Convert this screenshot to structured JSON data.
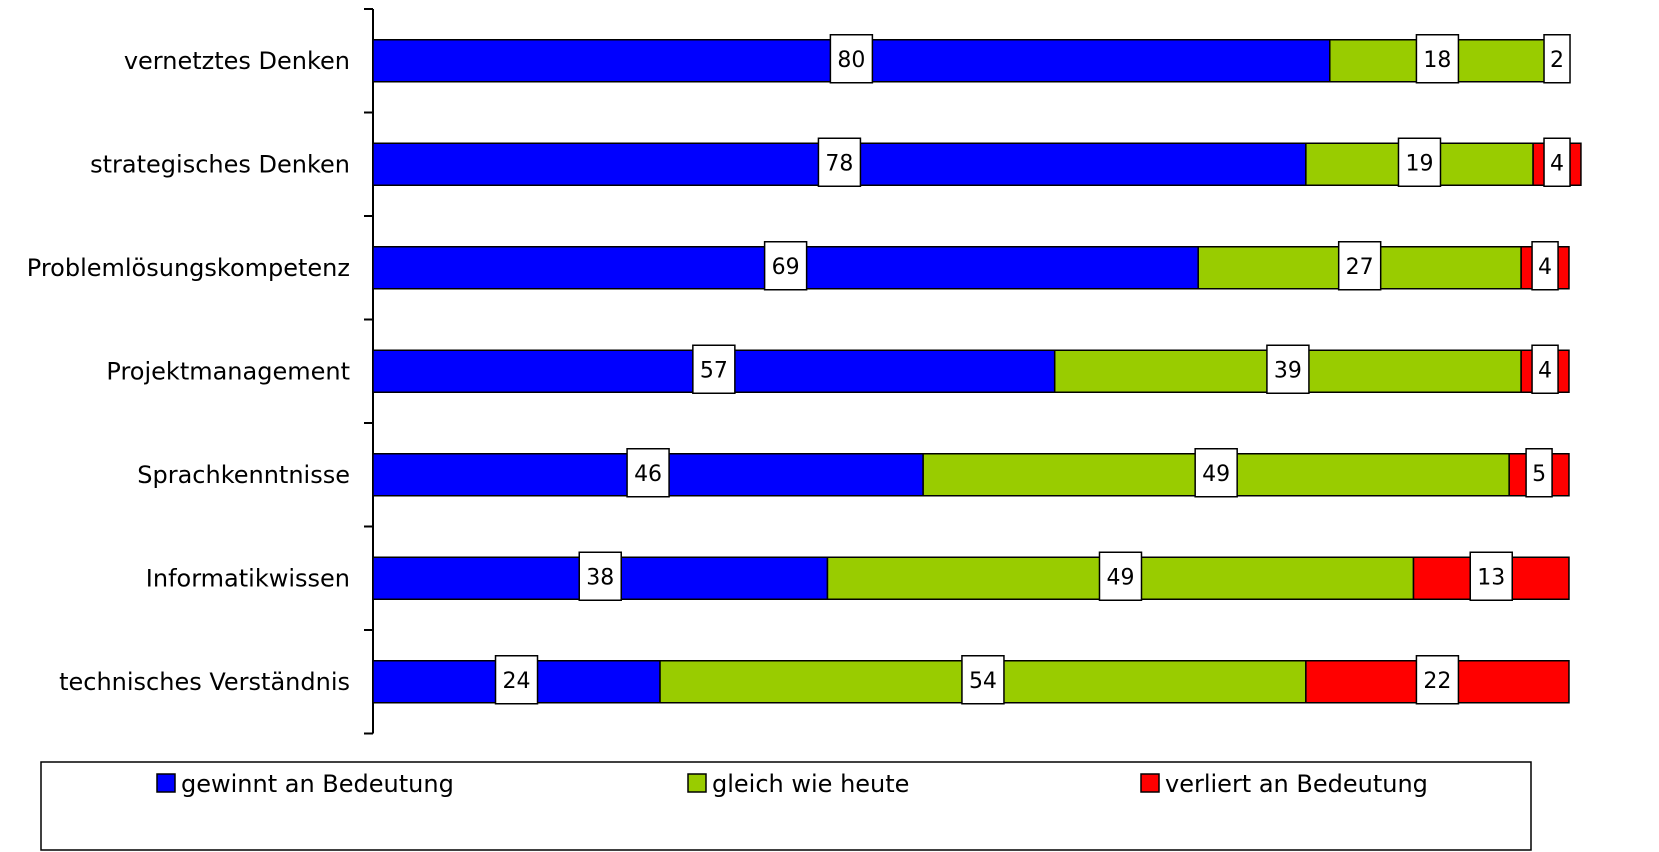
{
  "chart_data": {
    "type": "bar",
    "orientation": "horizontal",
    "stacked": true,
    "categories": [
      "vernetztes Denken",
      "strategisches Denken",
      "Problemlösungskompetenz",
      "Projektmanagement",
      "Sprachkenntnisse",
      "Informatikwissen",
      "technisches Verständnis"
    ],
    "series": [
      {
        "name": "gewinnt an Bedeutung",
        "color": "#0000FF",
        "values": [
          80,
          78,
          69,
          57,
          46,
          38,
          24
        ]
      },
      {
        "name": "gleich wie heute",
        "color": "#99CC00",
        "values": [
          18,
          19,
          27,
          39,
          49,
          49,
          54
        ]
      },
      {
        "name": "verliert an Bedeutung",
        "color": "#FF0000",
        "values": [
          2,
          4,
          4,
          4,
          5,
          13,
          22
        ]
      }
    ],
    "title": "",
    "xlabel": "",
    "ylabel": "",
    "xlim": [
      0,
      100
    ],
    "grid": false,
    "legend_position": "bottom"
  }
}
